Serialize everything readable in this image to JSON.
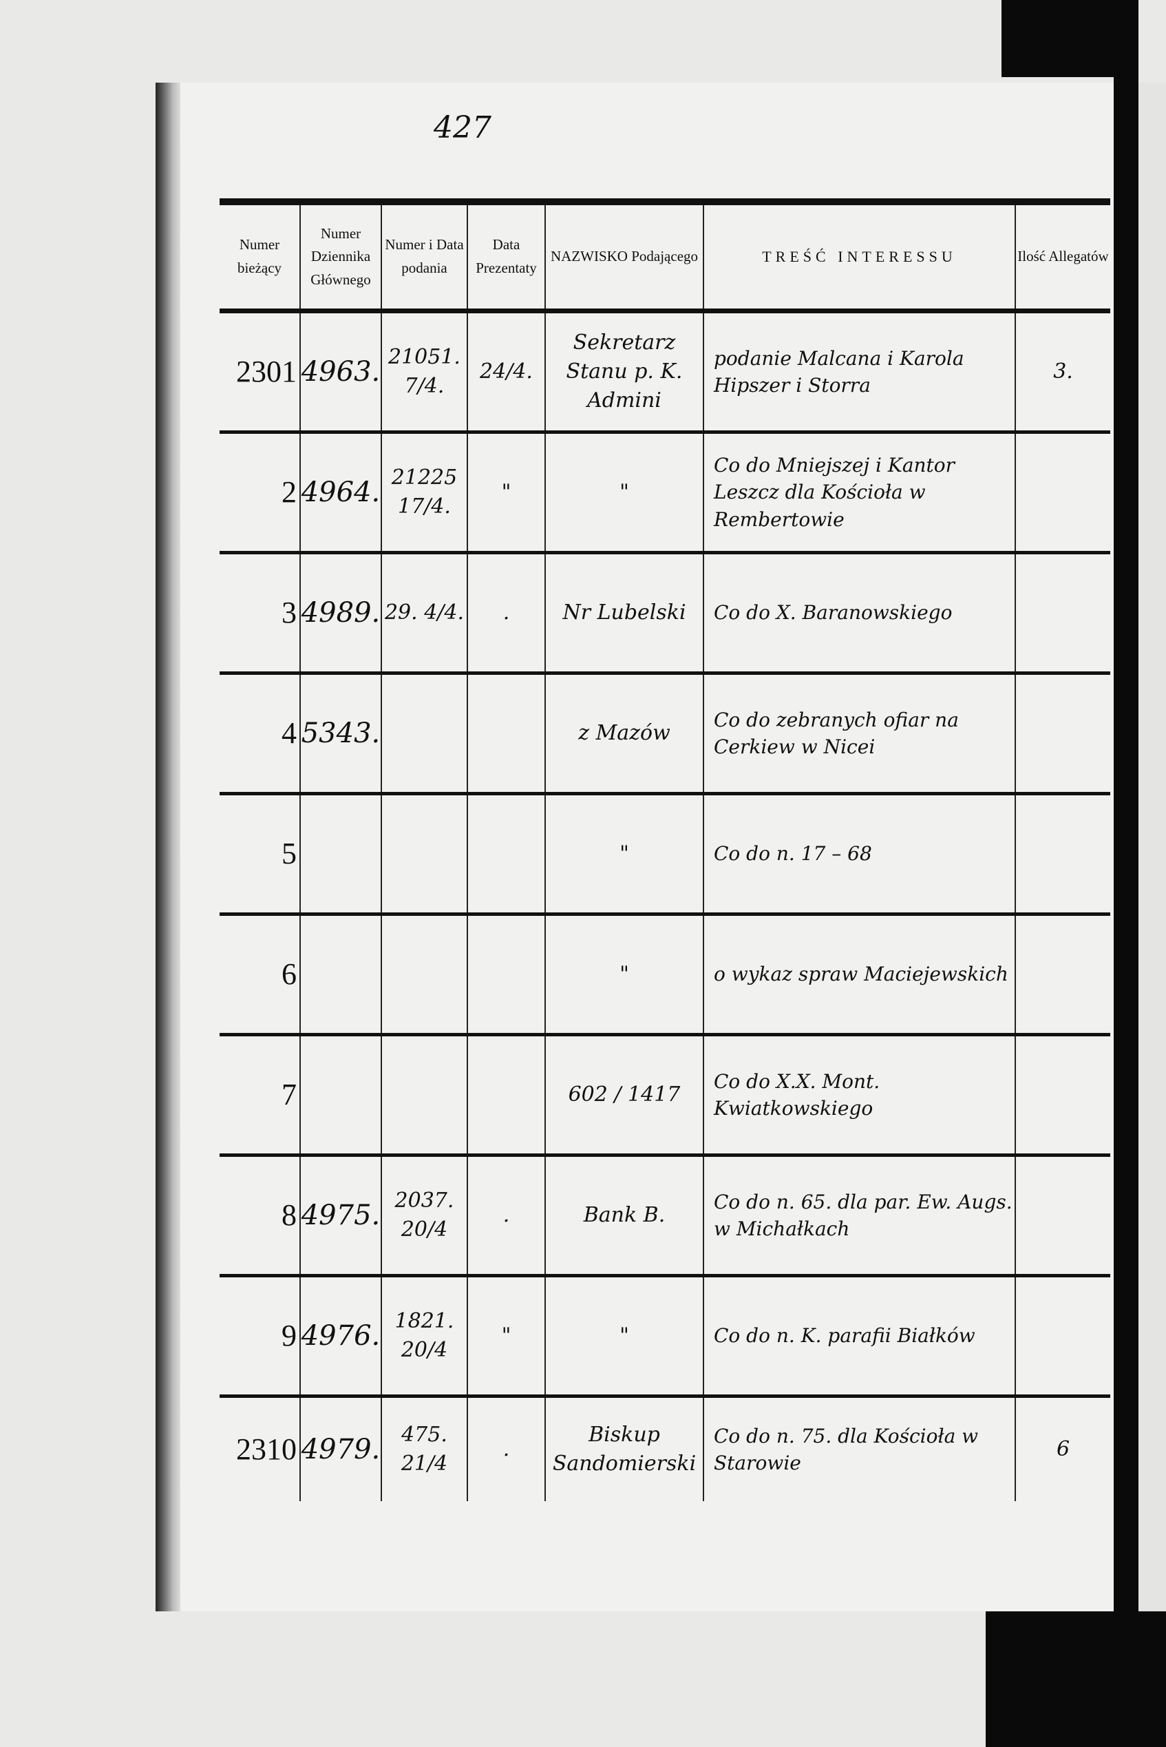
{
  "folio": "427",
  "headers": {
    "numer_biezacy": "Numer bieżący",
    "numer_dziennika": "Numer Dziennika Głównego",
    "numer_data_podania": "Numer i Data podania",
    "data_prezentaty": "Data Prezentaty",
    "nazwisko": "NAZWISKO Podającego",
    "tresc": "TREŚĆ INTERESSU",
    "ilosc_allegatow": "Ilość Allegatów"
  },
  "rows": [
    {
      "num": "2301",
      "journal": "4963.",
      "num_date": "21051. 7/4.",
      "prezentata": "24/4.",
      "name": "Sekretarz Stanu p. K. Admini",
      "content": "podanie Malcana i Karola Hipszer i Storra",
      "allegaty": "3."
    },
    {
      "num": "2",
      "journal": "4964.",
      "num_date": "21225 17/4.",
      "prezentata": "\"",
      "name": "\"",
      "content": "Co do Mniejszej i Kantor Leszcz dla Kościoła w Rembertowie",
      "allegaty": ""
    },
    {
      "num": "3",
      "journal": "4989.",
      "num_date": "29. 4/4.",
      "prezentata": ".",
      "name": "Nr Lubelski",
      "content": "Co do X. Baranowskiego",
      "allegaty": ""
    },
    {
      "num": "4",
      "journal": "5343.",
      "num_date": "",
      "prezentata": "",
      "name": "z Mazów",
      "content": "Co do zebranych ofiar na Cerkiew w Nicei",
      "allegaty": ""
    },
    {
      "num": "5",
      "journal": "",
      "num_date": "",
      "prezentata": "",
      "name": "\"",
      "content": "Co do n. 17 – 68",
      "allegaty": ""
    },
    {
      "num": "6",
      "journal": "",
      "num_date": "",
      "prezentata": "",
      "name": "\"",
      "content": "o wykaz spraw Maciejewskich",
      "allegaty": ""
    },
    {
      "num": "7",
      "journal": "",
      "num_date": "",
      "prezentata": "",
      "name": "602 / 1417",
      "content": "Co do X.X. Mont. Kwiatkowskiego",
      "allegaty": ""
    },
    {
      "num": "8",
      "journal": "4975.",
      "num_date": "2037. 20/4",
      "prezentata": ".",
      "name": "Bank B.",
      "content": "Co do n. 65. dla par. Ew. Augs. w Michałkach",
      "allegaty": ""
    },
    {
      "num": "9",
      "journal": "4976.",
      "num_date": "1821. 20/4",
      "prezentata": "\"",
      "name": "\"",
      "content": "Co do n. K. parafii Białków",
      "allegaty": ""
    },
    {
      "num": "2310",
      "journal": "4979.",
      "num_date": "475. 21/4",
      "prezentata": ".",
      "name": "Biskup Sandomierski",
      "content": "Co do n. 75. dla Kościoła w Starowie",
      "allegaty": "6"
    }
  ]
}
